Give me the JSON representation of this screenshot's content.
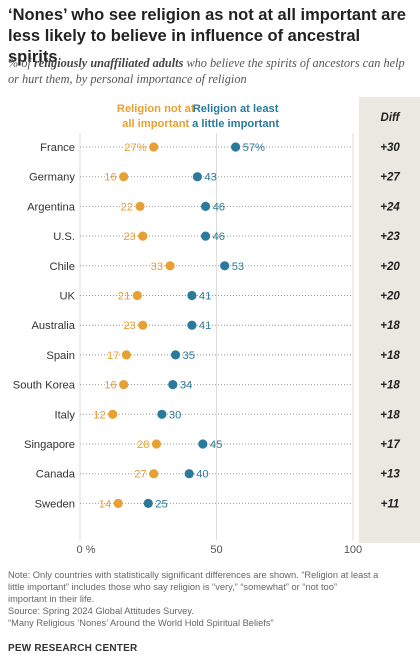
{
  "header": {
    "title": "‘Nones’ who see religion as not at all important are less likely to believe in influence of ancestral spirits",
    "subtitle_prefix": "% of ",
    "subtitle_bold": "religiously unaffiliated adults",
    "subtitle_suffix": " who believe the spirits of ancestors can help or hurt them, by personal importance of religion"
  },
  "colors": {
    "not_at_all": "#E8A032",
    "at_least_little": "#2B7A9B",
    "diff_panel": "#EBE8E1",
    "dots_line": "#999999"
  },
  "chart_data": {
    "type": "dot",
    "categories": [
      "France",
      "Germany",
      "Argentina",
      "U.S.",
      "Chile",
      "UK",
      "Australia",
      "Spain",
      "South Korea",
      "Italy",
      "Singapore",
      "Canada",
      "Sweden"
    ],
    "series": [
      {
        "name": "Religion not at all important",
        "values": [
          27,
          16,
          22,
          23,
          33,
          21,
          23,
          17,
          16,
          12,
          28,
          27,
          14
        ]
      },
      {
        "name": "Religion at least a little important",
        "values": [
          57,
          43,
          46,
          46,
          53,
          41,
          41,
          35,
          34,
          30,
          45,
          40,
          25
        ]
      }
    ],
    "series_label_lines": [
      [
        "Religion not at",
        "all important"
      ],
      [
        "Religion at least",
        "a little important"
      ]
    ],
    "value_labels_first_row": [
      "27%",
      "57%"
    ],
    "diff_header": "Diff",
    "diff": [
      "+30",
      "+27",
      "+24",
      "+23",
      "+20",
      "+20",
      "+18",
      "+18",
      "+18",
      "+18",
      "+17",
      "+13",
      "+11"
    ],
    "xlim": [
      0,
      100
    ],
    "x_ticks": [
      0,
      50,
      100
    ],
    "x_tick_labels": [
      "0 %",
      "50",
      "100"
    ]
  },
  "notes": {
    "note_line1": "Note: Only countries with statistically significant differences are shown. “Religion at least a",
    "note_line2": "little important” includes those who say religion is “very,” “somewhat” or “not too”",
    "note_line3": "important in their life.",
    "source": "Source: Spring 2024 Global Attitudes Survey.",
    "report": "“Many Religious ‘Nones’ Around the World Hold Spiritual Beliefs”"
  },
  "footer": {
    "org": "PEW RESEARCH CENTER"
  }
}
